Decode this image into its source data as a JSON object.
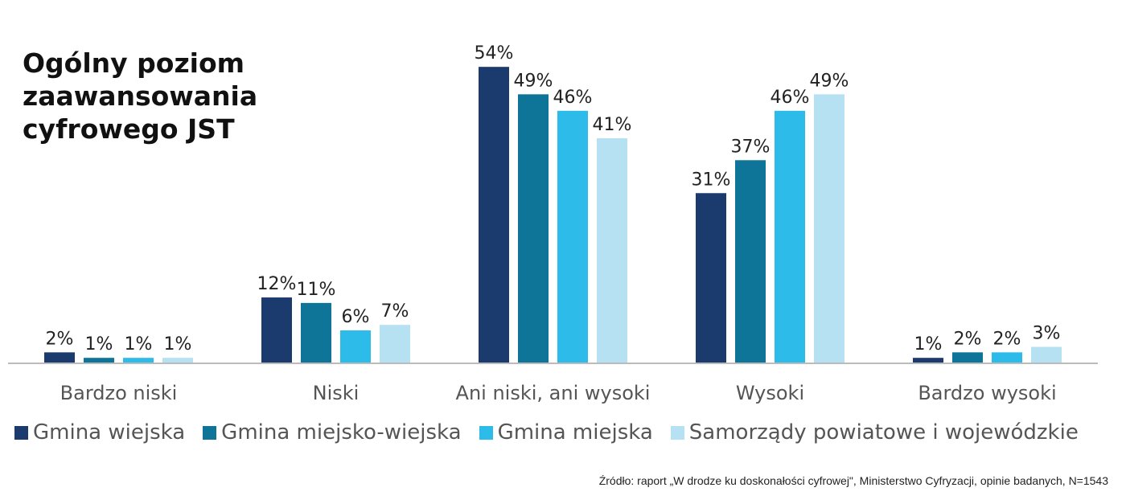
{
  "chart_data": {
    "type": "bar",
    "title": "Ogólny poziom\nzaawansowania\ncyfrowego JST",
    "categories": [
      "Bardzo niski",
      "Niski",
      "Ani niski, ani wysoki",
      "Wysoki",
      "Bardzo wysoki"
    ],
    "series": [
      {
        "name": "Gmina wiejska",
        "color": "#1b3a6e",
        "values": [
          2,
          12,
          54,
          31,
          1
        ]
      },
      {
        "name": "Gmina miejsko-wiejska",
        "color": "#0e7598",
        "values": [
          1,
          11,
          49,
          37,
          2
        ]
      },
      {
        "name": "Gmina miejska",
        "color": "#2dbbea",
        "values": [
          1,
          6,
          46,
          46,
          2
        ]
      },
      {
        "name": "Samorządy powiatowe i wojewódzkie",
        "color": "#b5e1f3",
        "values": [
          1,
          7,
          41,
          49,
          3
        ]
      }
    ],
    "value_suffix": "%",
    "ylim": [
      0,
      60
    ],
    "grid": false,
    "legend_position": "bottom",
    "source": "Źródło: raport „W drodze ku doskonałości cyfrowej\", Ministerstwo Cyfryzacji, opinie badanych, N=1543"
  }
}
